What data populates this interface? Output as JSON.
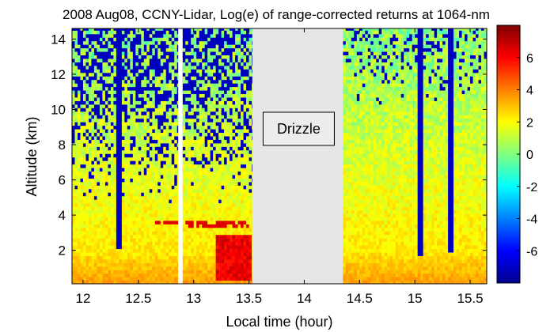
{
  "chart_data": {
    "type": "heatmap",
    "title": "2008 Aug08, CCNY-Lidar, Log(e) of range-corrected returns at 1064-nm",
    "xlabel": "Local time (hour)",
    "ylabel": "Altitude (km)",
    "xlim": [
      11.9,
      15.65
    ],
    "ylim": [
      0.1,
      14.6
    ],
    "x_ticks": [
      "12",
      "12.5",
      "13",
      "13.5",
      "14",
      "14.5",
      "15",
      "15.5"
    ],
    "x_tick_values": [
      12,
      12.5,
      13,
      13.5,
      14,
      14.5,
      15,
      15.5
    ],
    "y_ticks": [
      "2",
      "4",
      "6",
      "8",
      "10",
      "12",
      "14"
    ],
    "y_tick_values": [
      2,
      4,
      6,
      8,
      10,
      12,
      14
    ],
    "colorbar": {
      "range": [
        -8,
        8
      ],
      "ticks": [
        "6",
        "4",
        "2",
        "0",
        "-2",
        "-4",
        "-6"
      ],
      "tick_values": [
        6,
        4,
        2,
        0,
        -2,
        -4,
        -6
      ],
      "colormap": "jet"
    },
    "data_gaps": [
      {
        "x_start": 12.86,
        "x_end": 12.9,
        "color": "#ffffff"
      },
      {
        "x_start": 13.53,
        "x_end": 14.35,
        "color": "#e6e6e6"
      }
    ],
    "annotation": {
      "text": "Drizzle",
      "x": 13.95,
      "y": 8.9
    },
    "features": {
      "boundary_layer_top_km": 1.6,
      "cloud_layers": [
        {
          "x_start": 12.92,
          "x_end": 13.5,
          "y_km": 3.5
        },
        {
          "x_start": 12.65,
          "x_end": 12.9,
          "y_km": 3.6
        }
      ],
      "signal_dropouts": [
        {
          "x": 12.33,
          "y_from": 2.0
        },
        {
          "x": 15.05,
          "y_from": 1.6
        },
        {
          "x": 15.33,
          "y_from": 1.8
        }
      ]
    }
  }
}
